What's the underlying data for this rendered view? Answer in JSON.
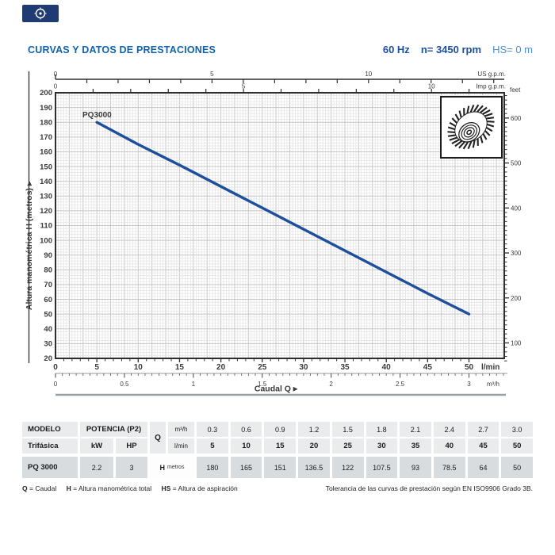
{
  "header": {
    "title": "CURVAS Y DATOS DE PRESTACIONES",
    "frequency": "60 Hz",
    "speed": "n= 3450 rpm",
    "suction": "HS= 0 m"
  },
  "colors": {
    "title_blue": "#1062ae",
    "info_blue": "#1c4f9f",
    "hs_blue": "#4d8fd2",
    "curve_blue": "#1d4f9c",
    "frame": "#2e2e2e",
    "grid_minor": "#e2e2e2",
    "grid_medium": "#c6c6c6",
    "secondary_text": "#5c524b",
    "divider_gray": "#9aa0a4",
    "table_header_bg": "#e9ebec",
    "table_row_bg": "#d8dcdf"
  },
  "chart_data": {
    "type": "line",
    "series": [
      {
        "name": "PQ3000",
        "x_lmin": [
          5,
          10,
          15,
          20,
          25,
          30,
          35,
          40,
          45,
          50
        ],
        "h_metros": [
          180,
          165,
          151,
          136.5,
          122,
          107.5,
          93,
          78.5,
          64,
          50
        ]
      }
    ],
    "xlabel": "Caudal Q",
    "ylabel": "Altura manométrica H (metros)",
    "xlim_lmin": [
      0,
      50
    ],
    "ylim_metros": [
      20,
      200
    ],
    "grid": "on",
    "axes": {
      "y_ticks_metros": [
        200,
        190,
        180,
        170,
        160,
        150,
        140,
        130,
        120,
        110,
        100,
        90,
        80,
        70,
        60,
        50,
        40,
        30,
        20
      ],
      "x_ticks_lmin": [
        0,
        5,
        10,
        15,
        20,
        25,
        30,
        35,
        40,
        45,
        50
      ],
      "x_ticks_m3h": [
        "0",
        "0.5",
        "1",
        "1.5",
        "2",
        "2.5",
        "3"
      ],
      "x_ticks_m3h_values": [
        0,
        0.5,
        1,
        1.5,
        2,
        2.5,
        3
      ],
      "us_gpm_ticks": [
        0,
        5,
        10
      ],
      "imp_gpm_ticks": [
        0,
        5,
        10
      ],
      "feet_ticks": [
        600,
        500,
        400,
        300,
        200,
        100
      ],
      "unit_lmin": "l/min",
      "unit_m3h": "m³/h",
      "unit_us": "US g.p.m.",
      "unit_imp": "Imp g.p.m.",
      "unit_feet": "feet"
    }
  },
  "table": {
    "modelo_header": "MODELO",
    "modelo_sub": "Trifásica",
    "potencia_header": "POTENCIA (P2)",
    "kw_label": "kW",
    "hp_label": "HP",
    "q_label": "Q",
    "m3h_label": "m³/h",
    "lmin_label": "l/min",
    "h_label": "H",
    "h_unit": "metros",
    "q_m3h": [
      "0.3",
      "0.6",
      "0.9",
      "1.2",
      "1.5",
      "1.8",
      "2.1",
      "2.4",
      "2.7",
      "3.0"
    ],
    "q_lmin": [
      "5",
      "10",
      "15",
      "20",
      "25",
      "30",
      "35",
      "40",
      "45",
      "50"
    ],
    "rows": [
      {
        "modelo": "PQ 3000",
        "kw": "2.2",
        "hp": "3",
        "h_metros": [
          "180",
          "165",
          "151",
          "136.5",
          "122",
          "107.5",
          "93",
          "78.5",
          "64",
          "50"
        ]
      }
    ]
  },
  "footnotes": {
    "defs": [
      {
        "term": "Q",
        "def": "= Caudal"
      },
      {
        "term": "H",
        "def": "= Altura manométrica total"
      },
      {
        "term": "HS",
        "def": "= Altura de aspiración"
      }
    ],
    "tolerance": "Tolerancia de las curvas de prestación según EN ISO9906 Grado 3B."
  }
}
